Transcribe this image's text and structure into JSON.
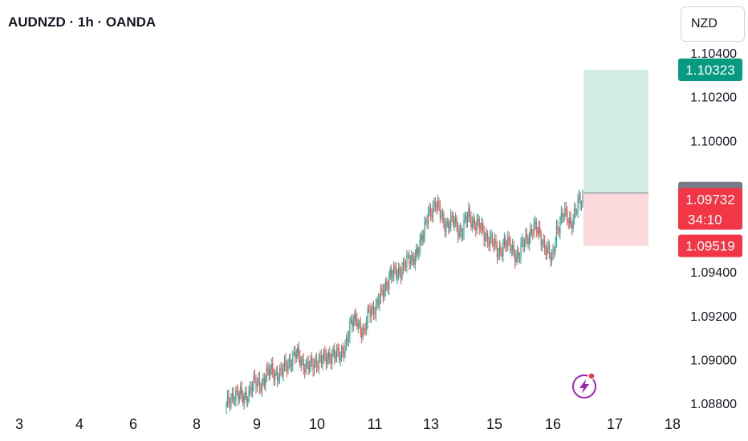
{
  "header": {
    "title": "AUDNZD · 1h · OANDA",
    "currency": "NZD"
  },
  "chart_data": {
    "type": "candlestick",
    "symbol": "AUDNZD",
    "interval": "1h",
    "ylim": [
      1.0875,
      1.1045
    ],
    "y_ticks": [
      "1.10400",
      "1.10200",
      "1.10000",
      "1.09400",
      "1.09200",
      "1.09000",
      "1.08800"
    ],
    "x_ticks": [
      "3",
      "4",
      "6",
      "8",
      "9",
      "10",
      "11",
      "13",
      "15",
      "16",
      "17",
      "18"
    ],
    "price_path": [
      [
        0,
        1.0878
      ],
      [
        6,
        1.0885
      ],
      [
        14,
        1.0882
      ],
      [
        22,
        1.0888
      ],
      [
        30,
        1.089
      ],
      [
        38,
        1.0895
      ],
      [
        46,
        1.0893
      ],
      [
        52,
        1.0899
      ],
      [
        58,
        1.0902
      ],
      [
        66,
        1.0898
      ],
      [
        72,
        1.0896
      ],
      [
        78,
        1.0901
      ],
      [
        84,
        1.0899
      ],
      [
        90,
        1.0904
      ],
      [
        96,
        1.09
      ],
      [
        104,
        1.0915
      ],
      [
        110,
        1.0918
      ],
      [
        116,
        1.0912
      ],
      [
        120,
        1.0921
      ],
      [
        126,
        1.0925
      ],
      [
        132,
        1.093
      ],
      [
        138,
        1.094
      ],
      [
        144,
        1.0938
      ],
      [
        150,
        1.0945
      ],
      [
        156,
        1.0944
      ],
      [
        160,
        1.095
      ],
      [
        166,
        1.0956
      ],
      [
        170,
        1.0968
      ],
      [
        176,
        1.097
      ],
      [
        180,
        1.0967
      ],
      [
        186,
        1.0961
      ],
      [
        192,
        1.0963
      ],
      [
        198,
        1.0958
      ],
      [
        204,
        1.0966
      ],
      [
        210,
        1.0962
      ],
      [
        216,
        1.0958
      ],
      [
        222,
        1.0955
      ],
      [
        228,
        1.0949
      ],
      [
        234,
        1.0953
      ],
      [
        240,
        1.0951
      ],
      [
        246,
        1.0947
      ],
      [
        252,
        1.0955
      ],
      [
        258,
        1.096
      ],
      [
        264,
        1.0957
      ],
      [
        270,
        1.095
      ],
      [
        274,
        1.0944
      ],
      [
        278,
        1.096
      ],
      [
        284,
        1.0966
      ],
      [
        290,
        1.0963
      ],
      [
        296,
        1.097
      ],
      [
        300,
        1.0973
      ]
    ],
    "position": {
      "type": "long",
      "entry": 1.0976,
      "target": 1.10323,
      "stop": 1.09519,
      "current": 1.09732,
      "countdown": "34:10"
    },
    "colors": {
      "up": "#26a69a",
      "down": "#ef5350",
      "target_zone": "#d5ede7",
      "stop_zone": "#fbd9dc",
      "entry_tag": "#787b86",
      "target_tag": "#089981",
      "stop_tag": "#f23645"
    }
  }
}
